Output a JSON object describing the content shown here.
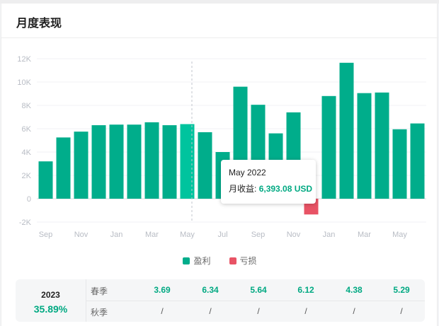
{
  "header": {
    "title": "月度表现"
  },
  "chart_data": {
    "type": "bar",
    "categories": [
      "Sep",
      "Oct",
      "Nov",
      "Dec",
      "Jan",
      "Feb",
      "Mar",
      "Apr",
      "May",
      "Jun",
      "Jul",
      "Aug",
      "Sep",
      "Oct",
      "Nov",
      "Dec",
      "Jan",
      "Feb",
      "Mar",
      "Apr",
      "May",
      "Jun"
    ],
    "x_tick_labels": [
      "Sep",
      "Nov",
      "Jan",
      "Mar",
      "May",
      "Jul",
      "Sep",
      "Nov",
      "Jan",
      "Mar",
      "May"
    ],
    "values": [
      3200,
      5250,
      5750,
      6300,
      6350,
      6350,
      6550,
      6300,
      6393.08,
      5700,
      4000,
      9600,
      8050,
      5600,
      7400,
      -1350,
      8800,
      11650,
      9050,
      9100,
      5950,
      6450
    ],
    "y_tick_labels": [
      "12K",
      "10K",
      "8K",
      "6K",
      "4K",
      "2K",
      "0",
      "-2K"
    ],
    "ylim": [
      -2000,
      12000
    ],
    "highlight_index": 8,
    "colors": {
      "profit": "#00ad8b",
      "highlight": "#00c49e",
      "loss": "#e85365"
    },
    "grid": true,
    "legend": {
      "position": "bottom",
      "items": [
        {
          "label": "盈利",
          "color": "#00ad8b"
        },
        {
          "label": "亏损",
          "color": "#e85365"
        }
      ]
    },
    "tooltip": {
      "title": "May 2022",
      "label": "月收益:",
      "value": "6,393.08 USD"
    }
  },
  "summary": {
    "year": "2023",
    "year_return": "35.89%",
    "rows": [
      {
        "label": "春季",
        "values": [
          "3.69",
          "6.34",
          "5.64",
          "6.12",
          "4.38",
          "5.29"
        ]
      },
      {
        "label": "秋季",
        "values": [
          "/",
          "/",
          "/",
          "/",
          "/",
          "/"
        ]
      }
    ]
  }
}
